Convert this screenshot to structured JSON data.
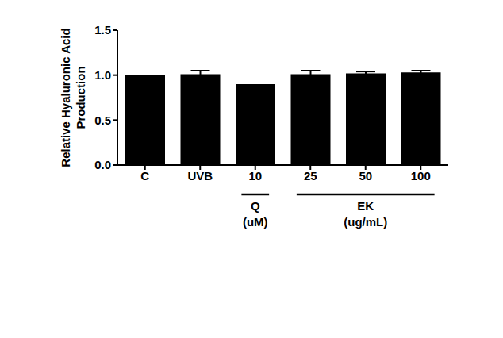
{
  "chart_data": {
    "type": "bar",
    "y_label": "Relative Hyaluronic Acid Production",
    "categories": [
      "C",
      "UVB",
      "10",
      "25",
      "50",
      "100"
    ],
    "values": [
      1.0,
      1.01,
      0.9,
      1.01,
      1.02,
      1.03
    ],
    "errors": [
      0,
      0.04,
      0,
      0.04,
      0.02,
      0.02
    ],
    "color": "#000000",
    "ylim": [
      0,
      1.5
    ],
    "yticks": [
      {
        "value": 0,
        "label": "0.0"
      },
      {
        "value": 0.5,
        "label": "0.5"
      },
      {
        "value": 1,
        "label": "1.0"
      },
      {
        "value": 1.5,
        "label": "1.5"
      }
    ],
    "groups": [
      {
        "label": "Q",
        "sublabel": "(uM)",
        "members": [
          "10"
        ]
      },
      {
        "label": "EK",
        "sublabel": "(ug/mL)",
        "members": [
          "25",
          "50",
          "100"
        ]
      }
    ]
  }
}
